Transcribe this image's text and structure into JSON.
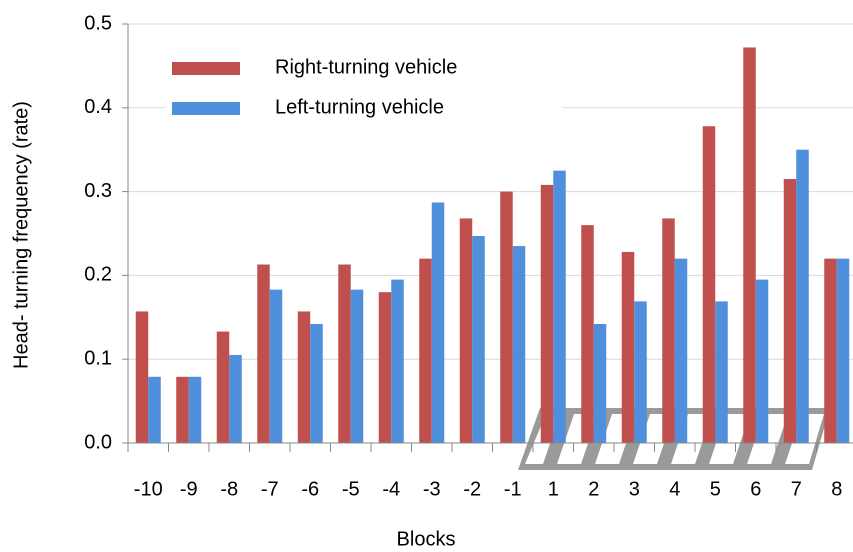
{
  "chart_data": {
    "type": "bar",
    "x_label": "Blocks",
    "y_label": "Head- turning frequency (rate)",
    "categories": [
      "-10",
      "-9",
      "-8",
      "-7",
      "-6",
      "-5",
      "-4",
      "-3",
      "-2",
      "-1",
      "1",
      "2",
      "3",
      "4",
      "5",
      "6",
      "7",
      "8"
    ],
    "series": [
      {
        "name": "Right-turning vehicle",
        "color": "#c0504d",
        "values": [
          0.157,
          0.079,
          0.133,
          0.213,
          0.157,
          0.213,
          0.18,
          0.22,
          0.268,
          0.3,
          0.308,
          0.26,
          0.228,
          0.268,
          0.378,
          0.472,
          0.315,
          0.22
        ]
      },
      {
        "name": "Left-turning vehicle",
        "color": "#4f8fdb",
        "values": [
          0.079,
          0.079,
          0.105,
          0.183,
          0.142,
          0.183,
          0.195,
          0.287,
          0.247,
          0.235,
          0.325,
          0.142,
          0.169,
          0.22,
          0.169,
          0.195,
          0.35,
          0.22
        ]
      }
    ],
    "ylim": [
      0,
      0.5
    ],
    "yticks": [
      {
        "value": 0,
        "label": "0.0"
      },
      0.1,
      0.2,
      0.3,
      0.4,
      0.5
    ],
    "grid": true,
    "legend": "top-left"
  }
}
